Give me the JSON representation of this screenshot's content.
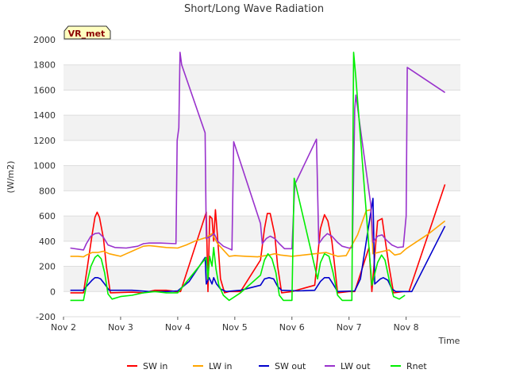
{
  "chart_data": {
    "type": "line",
    "title": "Short/Long Wave Radiation",
    "badge": "VR_met",
    "xlabel": "Time",
    "ylabel": "(W/m2)",
    "ylim": [
      -200,
      2000
    ],
    "xlim": [
      0,
      6.95
    ],
    "grid": true,
    "legend_position": "bottom",
    "y_ticks": [
      -200,
      0,
      200,
      400,
      600,
      800,
      1000,
      1200,
      1400,
      1600,
      1800,
      2000
    ],
    "x_ticks": [
      {
        "value": 0,
        "label": "Nov 2"
      },
      {
        "value": 1,
        "label": "Nov 3"
      },
      {
        "value": 2,
        "label": "Nov 4"
      },
      {
        "value": 3,
        "label": "Nov 5"
      },
      {
        "value": 4,
        "label": "Nov 6"
      },
      {
        "value": 5,
        "label": "Nov 7"
      },
      {
        "value": 6,
        "label": "Nov 8"
      }
    ],
    "series": [
      {
        "name": "SW in",
        "color": "#ff0000",
        "points": [
          [
            0.12,
            -10
          ],
          [
            0.35,
            -10
          ],
          [
            0.42,
            200
          ],
          [
            0.5,
            450
          ],
          [
            0.55,
            590
          ],
          [
            0.59,
            630
          ],
          [
            0.63,
            590
          ],
          [
            0.7,
            420
          ],
          [
            0.75,
            200
          ],
          [
            0.82,
            -10
          ],
          [
            1.2,
            -5
          ],
          [
            1.4,
            -10
          ],
          [
            1.6,
            10
          ],
          [
            1.8,
            10
          ],
          [
            1.98,
            0
          ],
          [
            2.05,
            0
          ],
          [
            2.5,
            630
          ],
          [
            2.53,
            0
          ],
          [
            2.56,
            600
          ],
          [
            2.6,
            580
          ],
          [
            2.63,
            400
          ],
          [
            2.66,
            650
          ],
          [
            2.7,
            420
          ],
          [
            2.75,
            100
          ],
          [
            2.82,
            -10
          ],
          [
            2.9,
            0
          ],
          [
            3.1,
            0
          ],
          [
            3.45,
            250
          ],
          [
            3.52,
            500
          ],
          [
            3.57,
            620
          ],
          [
            3.62,
            620
          ],
          [
            3.7,
            450
          ],
          [
            3.75,
            200
          ],
          [
            3.82,
            -10
          ],
          [
            4.0,
            0
          ],
          [
            4.4,
            50
          ],
          [
            4.5,
            500
          ],
          [
            4.57,
            610
          ],
          [
            4.63,
            560
          ],
          [
            4.7,
            400
          ],
          [
            4.75,
            200
          ],
          [
            4.8,
            -10
          ],
          [
            5.0,
            0
          ],
          [
            5.1,
            0
          ],
          [
            5.35,
            350
          ],
          [
            5.4,
            0
          ],
          [
            5.5,
            560
          ],
          [
            5.58,
            580
          ],
          [
            5.62,
            450
          ],
          [
            5.7,
            200
          ],
          [
            5.78,
            -10
          ],
          [
            5.95,
            0
          ],
          [
            6.05,
            0
          ],
          [
            6.68,
            850
          ]
        ]
      },
      {
        "name": "LW in",
        "color": "#ffa500",
        "points": [
          [
            0.12,
            280
          ],
          [
            0.25,
            280
          ],
          [
            0.35,
            275
          ],
          [
            0.4,
            290
          ],
          [
            0.5,
            310
          ],
          [
            0.6,
            310
          ],
          [
            0.7,
            320
          ],
          [
            0.8,
            300
          ],
          [
            0.9,
            290
          ],
          [
            1.0,
            280
          ],
          [
            1.1,
            300
          ],
          [
            1.2,
            320
          ],
          [
            1.3,
            340
          ],
          [
            1.4,
            360
          ],
          [
            1.5,
            365
          ],
          [
            1.6,
            360
          ],
          [
            1.8,
            350
          ],
          [
            2.0,
            345
          ],
          [
            2.15,
            370
          ],
          [
            2.3,
            400
          ],
          [
            2.5,
            430
          ],
          [
            2.6,
            460
          ],
          [
            2.7,
            380
          ],
          [
            2.8,
            330
          ],
          [
            2.9,
            280
          ],
          [
            3.0,
            285
          ],
          [
            3.2,
            280
          ],
          [
            3.4,
            275
          ],
          [
            3.6,
            290
          ],
          [
            3.7,
            300
          ],
          [
            3.8,
            290
          ],
          [
            4.0,
            280
          ],
          [
            4.2,
            290
          ],
          [
            4.4,
            300
          ],
          [
            4.6,
            310
          ],
          [
            4.8,
            280
          ],
          [
            4.95,
            285
          ],
          [
            5.15,
            450
          ],
          [
            5.3,
            640
          ],
          [
            5.38,
            650
          ],
          [
            5.42,
            300
          ],
          [
            5.6,
            320
          ],
          [
            5.7,
            330
          ],
          [
            5.8,
            290
          ],
          [
            5.9,
            300
          ],
          [
            6.0,
            340
          ],
          [
            6.2,
            400
          ],
          [
            6.4,
            460
          ],
          [
            6.68,
            560
          ]
        ]
      },
      {
        "name": "SW out",
        "color": "#0000cc",
        "points": [
          [
            0.12,
            10
          ],
          [
            0.35,
            10
          ],
          [
            0.4,
            40
          ],
          [
            0.5,
            90
          ],
          [
            0.55,
            110
          ],
          [
            0.6,
            110
          ],
          [
            0.65,
            100
          ],
          [
            0.72,
            60
          ],
          [
            0.8,
            10
          ],
          [
            1.2,
            10
          ],
          [
            1.5,
            0
          ],
          [
            1.8,
            0
          ],
          [
            2.0,
            5
          ],
          [
            2.2,
            80
          ],
          [
            2.48,
            270
          ],
          [
            2.5,
            60
          ],
          [
            2.55,
            110
          ],
          [
            2.6,
            60
          ],
          [
            2.63,
            110
          ],
          [
            2.68,
            60
          ],
          [
            2.75,
            20
          ],
          [
            2.85,
            0
          ],
          [
            3.1,
            10
          ],
          [
            3.45,
            50
          ],
          [
            3.52,
            100
          ],
          [
            3.6,
            110
          ],
          [
            3.68,
            100
          ],
          [
            3.75,
            40
          ],
          [
            3.82,
            10
          ],
          [
            4.1,
            5
          ],
          [
            4.4,
            10
          ],
          [
            4.5,
            80
          ],
          [
            4.57,
            110
          ],
          [
            4.65,
            110
          ],
          [
            4.72,
            60
          ],
          [
            4.8,
            0
          ],
          [
            5.1,
            5
          ],
          [
            5.2,
            100
          ],
          [
            5.42,
            740
          ],
          [
            5.45,
            60
          ],
          [
            5.55,
            100
          ],
          [
            5.6,
            110
          ],
          [
            5.68,
            90
          ],
          [
            5.75,
            20
          ],
          [
            5.82,
            0
          ],
          [
            6.1,
            0
          ],
          [
            6.68,
            520
          ]
        ]
      },
      {
        "name": "LW out",
        "color": "#9932cc",
        "points": [
          [
            0.12,
            345
          ],
          [
            0.35,
            330
          ],
          [
            0.4,
            380
          ],
          [
            0.48,
            440
          ],
          [
            0.55,
            460
          ],
          [
            0.62,
            465
          ],
          [
            0.7,
            430
          ],
          [
            0.78,
            370
          ],
          [
            0.9,
            350
          ],
          [
            1.1,
            345
          ],
          [
            1.3,
            360
          ],
          [
            1.4,
            380
          ],
          [
            1.5,
            385
          ],
          [
            1.7,
            385
          ],
          [
            1.97,
            380
          ],
          [
            1.99,
            1200
          ],
          [
            2.02,
            1300
          ],
          [
            2.04,
            1900
          ],
          [
            2.07,
            1800
          ],
          [
            2.48,
            1260
          ],
          [
            2.5,
            420
          ],
          [
            2.58,
            440
          ],
          [
            2.64,
            460
          ],
          [
            2.7,
            400
          ],
          [
            2.8,
            360
          ],
          [
            2.9,
            340
          ],
          [
            2.95,
            330
          ],
          [
            2.98,
            1190
          ],
          [
            3.45,
            540
          ],
          [
            3.48,
            380
          ],
          [
            3.55,
            420
          ],
          [
            3.62,
            440
          ],
          [
            3.7,
            420
          ],
          [
            3.78,
            380
          ],
          [
            3.87,
            340
          ],
          [
            4.0,
            340
          ],
          [
            4.05,
            850
          ],
          [
            4.43,
            1210
          ],
          [
            4.47,
            380
          ],
          [
            4.55,
            430
          ],
          [
            4.62,
            460
          ],
          [
            4.7,
            440
          ],
          [
            4.8,
            390
          ],
          [
            4.88,
            360
          ],
          [
            5.0,
            345
          ],
          [
            5.06,
            350
          ],
          [
            5.1,
            1450
          ],
          [
            5.12,
            1560
          ],
          [
            5.38,
            690
          ],
          [
            5.42,
            390
          ],
          [
            5.5,
            440
          ],
          [
            5.58,
            450
          ],
          [
            5.65,
            410
          ],
          [
            5.75,
            370
          ],
          [
            5.85,
            350
          ],
          [
            5.95,
            355
          ],
          [
            6.0,
            600
          ],
          [
            6.02,
            1780
          ],
          [
            6.68,
            1580
          ]
        ]
      },
      {
        "name": "Rnet",
        "color": "#00ee00",
        "points": [
          [
            0.12,
            -70
          ],
          [
            0.35,
            -70
          ],
          [
            0.4,
            50
          ],
          [
            0.48,
            200
          ],
          [
            0.55,
            270
          ],
          [
            0.6,
            290
          ],
          [
            0.66,
            260
          ],
          [
            0.72,
            150
          ],
          [
            0.78,
            -20
          ],
          [
            0.85,
            -60
          ],
          [
            1.0,
            -40
          ],
          [
            1.2,
            -30
          ],
          [
            1.4,
            -10
          ],
          [
            1.6,
            0
          ],
          [
            1.8,
            -10
          ],
          [
            2.0,
            -10
          ],
          [
            2.5,
            270
          ],
          [
            2.53,
            100
          ],
          [
            2.56,
            280
          ],
          [
            2.6,
            200
          ],
          [
            2.63,
            350
          ],
          [
            2.67,
            180
          ],
          [
            2.72,
            50
          ],
          [
            2.8,
            -30
          ],
          [
            2.9,
            -70
          ],
          [
            3.1,
            -10
          ],
          [
            3.45,
            130
          ],
          [
            3.52,
            250
          ],
          [
            3.58,
            300
          ],
          [
            3.65,
            260
          ],
          [
            3.72,
            150
          ],
          [
            3.78,
            -30
          ],
          [
            3.85,
            -70
          ],
          [
            4.0,
            -70
          ],
          [
            4.04,
            900
          ],
          [
            4.45,
            100
          ],
          [
            4.5,
            230
          ],
          [
            4.57,
            300
          ],
          [
            4.65,
            280
          ],
          [
            4.72,
            150
          ],
          [
            4.8,
            -30
          ],
          [
            4.88,
            -70
          ],
          [
            5.0,
            -70
          ],
          [
            5.05,
            -70
          ],
          [
            5.08,
            1900
          ],
          [
            5.12,
            1700
          ],
          [
            5.4,
            50
          ],
          [
            5.5,
            230
          ],
          [
            5.57,
            290
          ],
          [
            5.63,
            250
          ],
          [
            5.7,
            100
          ],
          [
            5.78,
            -40
          ],
          [
            5.88,
            -60
          ],
          [
            5.98,
            -30
          ]
        ]
      }
    ]
  }
}
